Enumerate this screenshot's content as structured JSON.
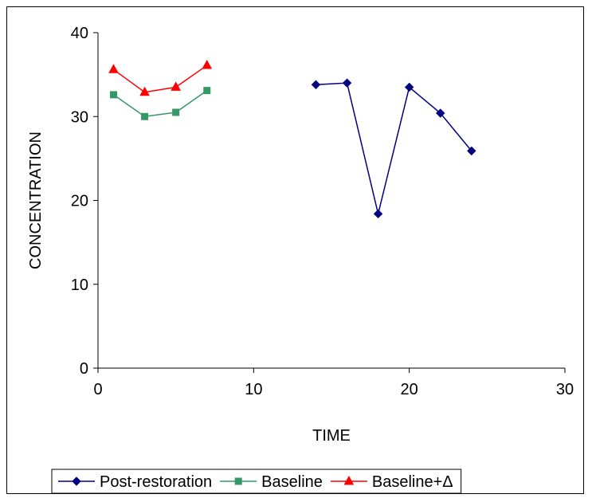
{
  "chart_data": {
    "type": "scatter",
    "title": "",
    "xlabel": "TIME",
    "ylabel": "CONCENTRATION",
    "xlim": [
      0,
      30
    ],
    "ylim": [
      0,
      40
    ],
    "xticks": [
      0,
      10,
      20,
      30
    ],
    "yticks": [
      0,
      10,
      20,
      30,
      40
    ],
    "grid": false,
    "legend_position": "bottom",
    "series": [
      {
        "name": "Post-restoration",
        "color": "#000080",
        "marker": "diamond",
        "points": [
          [
            14,
            33.8
          ],
          [
            16,
            34.0
          ],
          [
            18,
            18.4
          ],
          [
            20,
            33.5
          ],
          [
            22,
            30.4
          ],
          [
            24,
            25.9
          ]
        ]
      },
      {
        "name": "Baseline",
        "color": "#339966",
        "marker": "square",
        "points": [
          [
            1,
            32.6
          ],
          [
            3,
            30.0
          ],
          [
            5,
            30.5
          ],
          [
            7,
            33.1
          ]
        ]
      },
      {
        "name": "Baseline+Δ",
        "color": "#ff0000",
        "marker": "triangle",
        "points": [
          [
            1,
            35.6
          ],
          [
            3,
            32.9
          ],
          [
            5,
            33.5
          ],
          [
            7,
            36.1
          ]
        ]
      }
    ]
  }
}
